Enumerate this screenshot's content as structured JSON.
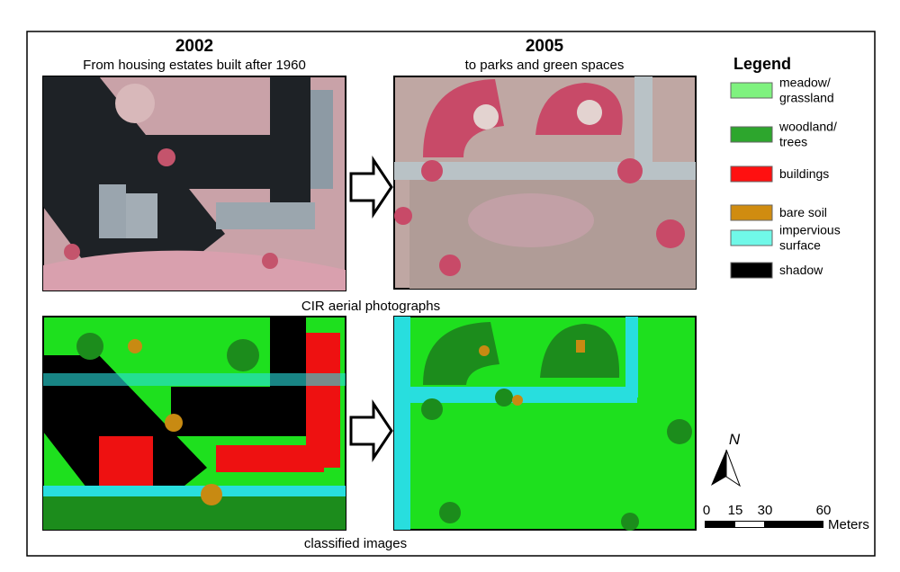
{
  "panels": [
    {
      "year": "2002",
      "subtitle": "From housing estates built after 1960"
    },
    {
      "year": "2005",
      "subtitle": "to parks and green spaces"
    }
  ],
  "captions": [
    "CIR aerial photographs",
    "classified images"
  ],
  "legend": {
    "title": "Legend",
    "items": [
      {
        "lines": [
          "meadow/",
          "grassland"
        ],
        "color": "#7ff27f"
      },
      {
        "lines": [
          "woodland/",
          "trees"
        ],
        "color": "#2da62d"
      },
      {
        "lines": [
          "buildings"
        ],
        "color": "#ff1010"
      },
      {
        "lines": [
          "bare soil"
        ],
        "color": "#d08c10"
      },
      {
        "lines": [
          "impervious",
          "surface"
        ],
        "color": "#70f8e8"
      },
      {
        "lines": [
          "shadow"
        ],
        "color": "#000000"
      }
    ]
  },
  "north": "N",
  "scale": {
    "labels": [
      "0",
      "15",
      "30",
      "60"
    ],
    "unit": "Meters"
  }
}
